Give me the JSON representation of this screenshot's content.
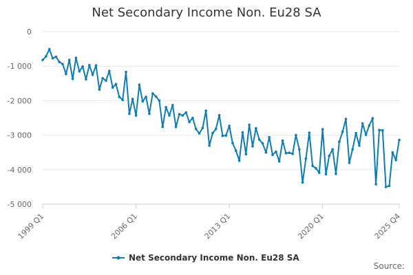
{
  "colors": {
    "line": "#0b7db3",
    "grid": "#e6e6e6",
    "axis": "#cccccc",
    "tick_text": "#666666"
  },
  "source_label": "Source:",
  "chart_data": {
    "type": "line",
    "title": "Net Secondary Income Non. Eu28 SA",
    "xlabel": "",
    "ylabel": "",
    "ylim": [
      -5000,
      0
    ],
    "yticks": [
      0,
      -1000,
      -2000,
      -3000,
      -4000,
      -5000
    ],
    "ytick_labels": [
      "0",
      "-1 000",
      "-2 000",
      "-3 000",
      "-4 000",
      "-5 000"
    ],
    "xtick_labels": [
      "1999 Q1",
      "2006 Q1",
      "2013 Q1",
      "2020 Q1",
      "2025 Q4"
    ],
    "xtick_index": [
      0,
      28,
      56,
      84,
      107
    ],
    "grid": true,
    "legend": "bottom-center",
    "series": [
      {
        "name": "Net Secondary Income Non. Eu28 SA",
        "x_start": "1999 Q1",
        "frequency": "quarterly",
        "values": [
          -820,
          -720,
          -510,
          -770,
          -730,
          -880,
          -940,
          -1230,
          -820,
          -1370,
          -760,
          -1150,
          -1010,
          -1380,
          -970,
          -1250,
          -980,
          -1680,
          -1350,
          -1420,
          -1140,
          -1620,
          -1520,
          -1890,
          -1980,
          -1170,
          -2380,
          -1950,
          -2430,
          -1540,
          -2020,
          -1890,
          -2380,
          -1790,
          -1880,
          -2000,
          -2760,
          -2190,
          -2430,
          -2130,
          -2760,
          -2390,
          -2430,
          -2340,
          -2620,
          -2500,
          -2820,
          -2950,
          -2790,
          -2290,
          -3300,
          -2940,
          -2820,
          -2420,
          -3020,
          -3010,
          -2730,
          -3230,
          -3450,
          -3740,
          -2920,
          -3550,
          -2700,
          -3320,
          -2800,
          -3130,
          -3240,
          -3500,
          -3060,
          -3570,
          -3480,
          -3760,
          -3160,
          -3520,
          -3510,
          -3540,
          -3000,
          -3410,
          -4370,
          -3680,
          -2930,
          -3890,
          -3960,
          -4090,
          -2830,
          -4130,
          -3600,
          -3410,
          -4120,
          -3190,
          -2900,
          -2530,
          -3800,
          -3410,
          -2940,
          -3300,
          -2660,
          -2990,
          -2720,
          -2510,
          -4420,
          -2850,
          -2860,
          -4500,
          -4470,
          -3500,
          -3720,
          -3140
        ]
      }
    ]
  }
}
